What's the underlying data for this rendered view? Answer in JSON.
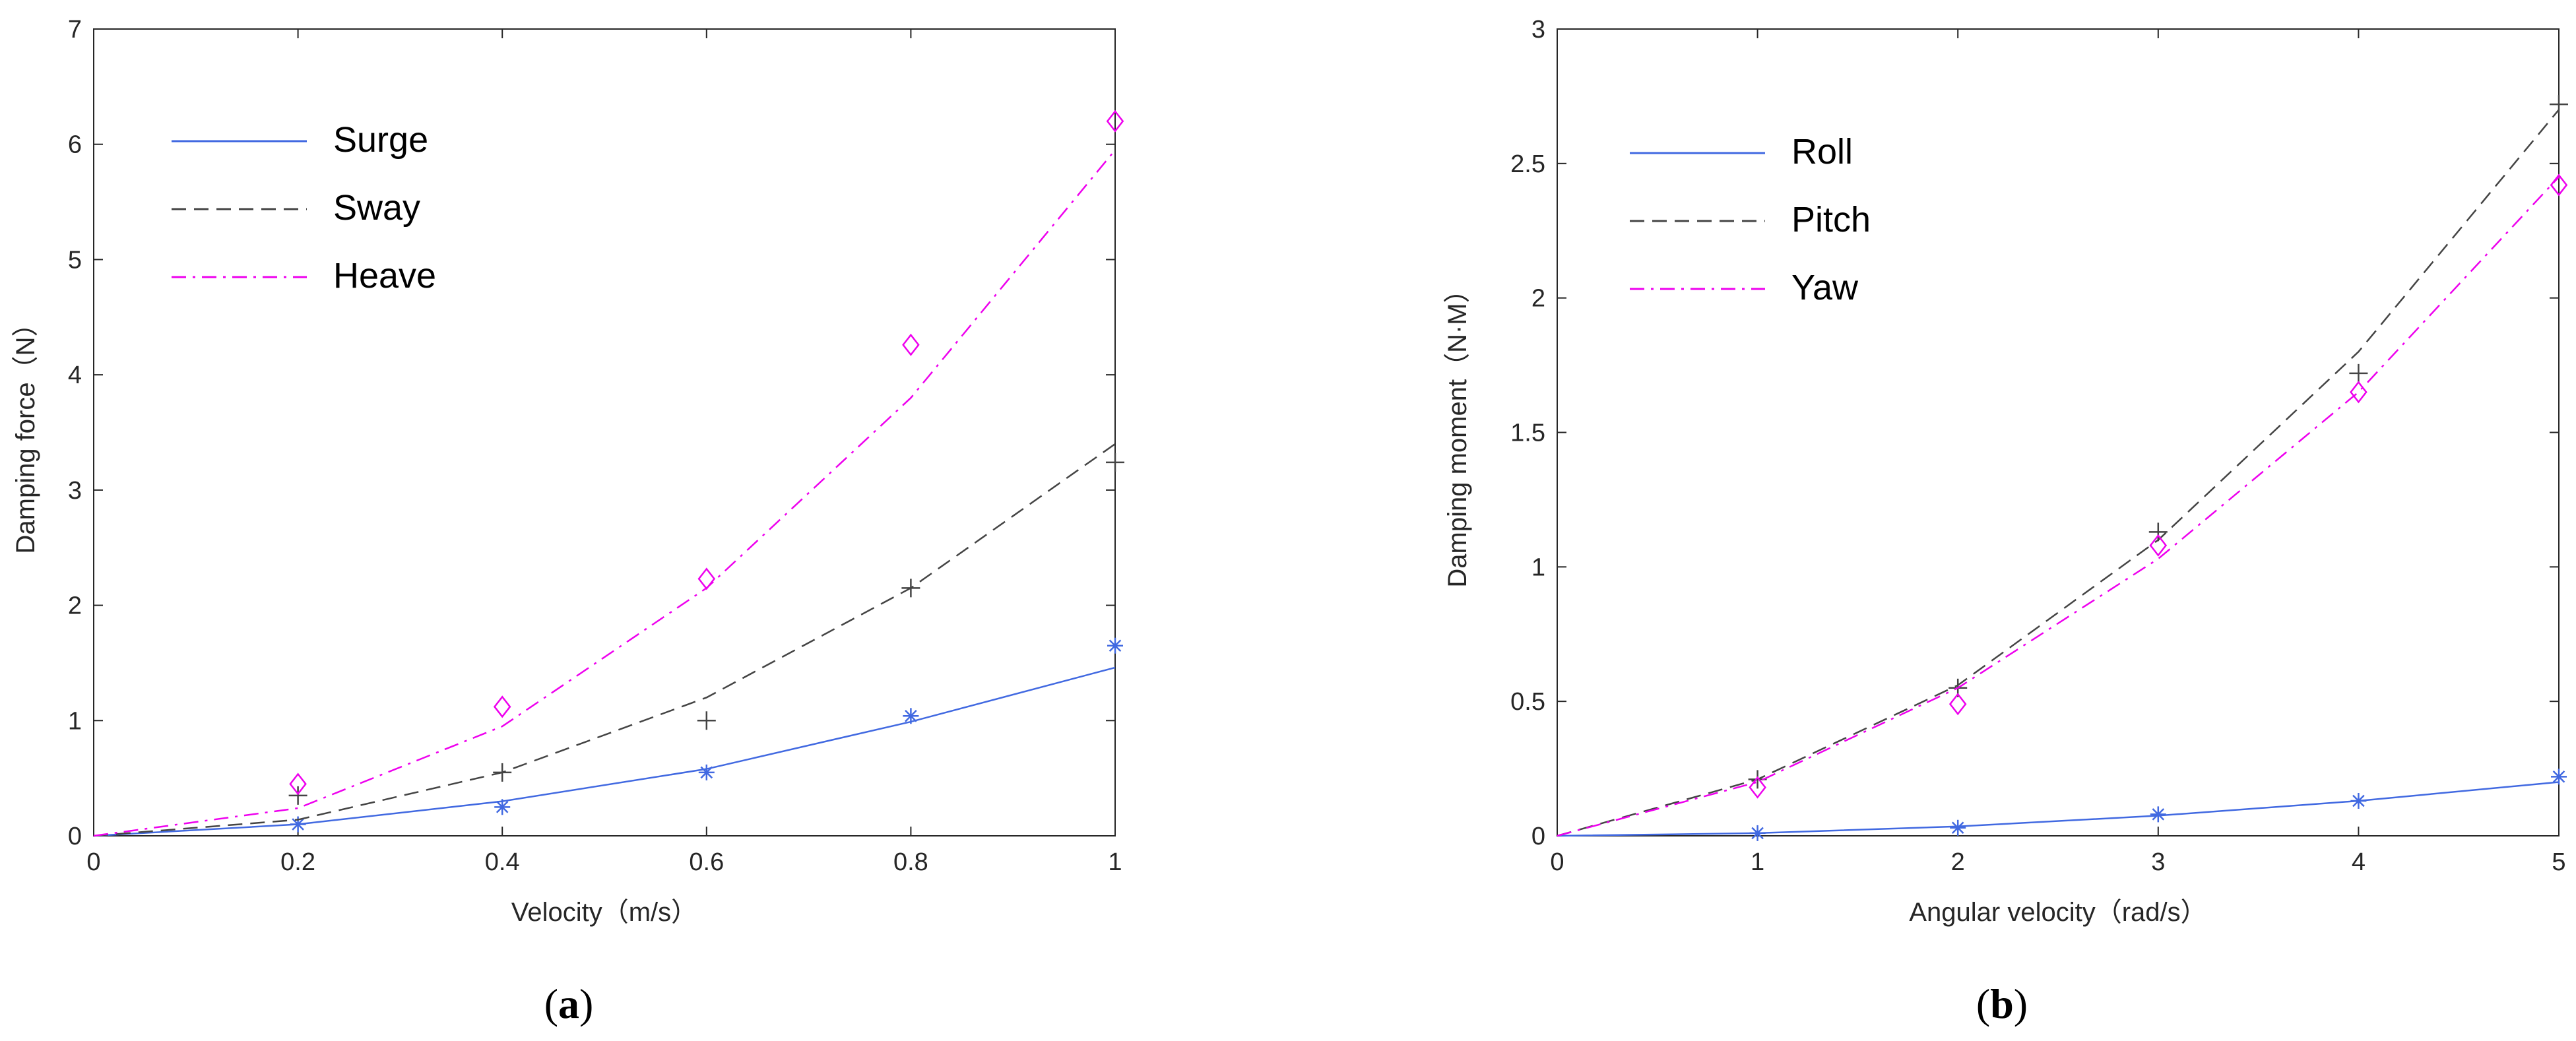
{
  "chart_data": [
    {
      "type": "line",
      "caption_open": "(",
      "caption_letter": "a",
      "caption_close": ")",
      "title": "",
      "xlabel": "Velocity（m/s）",
      "ylabel": "Damping force（N）",
      "xlim": [
        0,
        1
      ],
      "ylim": [
        0,
        7
      ],
      "xticks": [
        "0",
        "0.2",
        "0.4",
        "0.6",
        "0.8",
        "1"
      ],
      "yticks": [
        "0",
        "1",
        "2",
        "3",
        "4",
        "5",
        "6",
        "7"
      ],
      "xtick_values": [
        0,
        0.2,
        0.4,
        0.6,
        0.8,
        1
      ],
      "ytick_values": [
        0,
        1,
        2,
        3,
        4,
        5,
        6,
        7
      ],
      "legend_position": "top-left",
      "series": [
        {
          "name": "Surge",
          "color": "#4169e1",
          "line_style": "solid",
          "marker": "asterisk",
          "fit_x": [
            0,
            0.2,
            0.4,
            0.6,
            0.8,
            1
          ],
          "fit_y": [
            0,
            0.1,
            0.3,
            0.58,
            0.99,
            1.46
          ],
          "points_x": [
            0.2,
            0.4,
            0.6,
            0.8,
            1
          ],
          "points_y": [
            0.1,
            0.25,
            0.55,
            1.04,
            1.65
          ]
        },
        {
          "name": "Sway",
          "color": "#444444",
          "line_style": "dashed",
          "marker": "plus",
          "fit_x": [
            0,
            0.2,
            0.4,
            0.6,
            0.8,
            1
          ],
          "fit_y": [
            0,
            0.14,
            0.55,
            1.2,
            2.15,
            3.4
          ],
          "points_x": [
            0.2,
            0.4,
            0.6,
            0.8,
            1
          ],
          "points_y": [
            0.35,
            0.55,
            1.0,
            2.15,
            3.24
          ]
        },
        {
          "name": "Heave",
          "color": "#ee00ee",
          "line_style": "dashdot",
          "marker": "diamond",
          "fit_x": [
            0,
            0.2,
            0.4,
            0.6,
            0.8,
            1
          ],
          "fit_y": [
            0,
            0.24,
            0.95,
            2.15,
            3.8,
            5.95
          ],
          "points_x": [
            0.2,
            0.4,
            0.6,
            0.8,
            1
          ],
          "points_y": [
            0.45,
            1.12,
            2.23,
            4.26,
            6.2
          ]
        }
      ]
    },
    {
      "type": "line",
      "caption_open": "(",
      "caption_letter": "b",
      "caption_close": ")",
      "title": "",
      "xlabel": "Angular velocity（rad/s）",
      "ylabel": "Damping moment（N·M）",
      "xlim": [
        0,
        5
      ],
      "ylim": [
        0,
        3
      ],
      "xticks": [
        "0",
        "1",
        "2",
        "3",
        "4",
        "5"
      ],
      "yticks": [
        "0",
        "0.5",
        "1",
        "1.5",
        "2",
        "2.5",
        "3"
      ],
      "xtick_values": [
        0,
        1,
        2,
        3,
        4,
        5
      ],
      "ytick_values": [
        0,
        0.5,
        1,
        1.5,
        2,
        2.5,
        3
      ],
      "legend_position": "top-left",
      "series": [
        {
          "name": "Roll",
          "color": "#4169e1",
          "line_style": "solid",
          "marker": "asterisk",
          "fit_x": [
            0,
            1,
            2,
            3,
            4,
            5
          ],
          "fit_y": [
            0,
            0.01,
            0.035,
            0.075,
            0.13,
            0.2
          ],
          "points_x": [
            1,
            2,
            3,
            4,
            5
          ],
          "points_y": [
            0.01,
            0.03,
            0.08,
            0.13,
            0.22
          ]
        },
        {
          "name": "Pitch",
          "color": "#444444",
          "line_style": "dashed",
          "marker": "plus",
          "fit_x": [
            0,
            1,
            2,
            3,
            4,
            5
          ],
          "fit_y": [
            0,
            0.21,
            0.56,
            1.1,
            1.8,
            2.7
          ],
          "points_x": [
            1,
            2,
            3,
            4,
            5
          ],
          "points_y": [
            0.21,
            0.55,
            1.13,
            1.72,
            2.72
          ]
        },
        {
          "name": "Yaw",
          "color": "#ee00ee",
          "line_style": "dashdot",
          "marker": "diamond",
          "fit_x": [
            0,
            1,
            2,
            3,
            4,
            5
          ],
          "fit_y": [
            0,
            0.2,
            0.55,
            1.03,
            1.65,
            2.45
          ],
          "points_x": [
            1,
            2,
            3,
            4,
            5
          ],
          "points_y": [
            0.18,
            0.49,
            1.08,
            1.65,
            2.42
          ]
        }
      ]
    }
  ]
}
